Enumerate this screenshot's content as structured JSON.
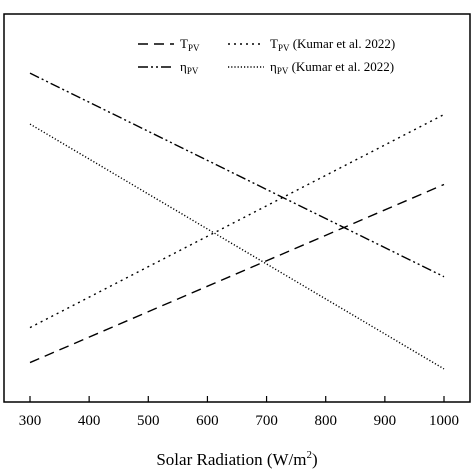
{
  "chart_data": {
    "type": "line",
    "title": "",
    "xlabel": "Solar Radiation (W/m",
    "xlabel_superscript": "2",
    "xlabel_close": ")",
    "ylabel": "",
    "xlim": [
      300,
      1000
    ],
    "ylim": [
      0,
      1
    ],
    "x_ticks": [
      300,
      400,
      500,
      600,
      700,
      800,
      900,
      1000
    ],
    "grid": false,
    "legend_position": "top",
    "series": [
      {
        "name": "T",
        "name_sub": "PV",
        "name_suffix": "",
        "dash": "dashed",
        "color": "#000000",
        "x": [
          300,
          1000
        ],
        "y": [
          0.08,
          0.64
        ]
      },
      {
        "name": "η",
        "name_sub": "PV",
        "name_suffix": "",
        "dash": "dashdotdot",
        "color": "#000000",
        "x": [
          300,
          1000
        ],
        "y": [
          0.99,
          0.35
        ]
      },
      {
        "name": "T",
        "name_sub": "PV",
        "name_suffix": " (Kumar et al. 2022)",
        "dash": "dotted",
        "color": "#000000",
        "x": [
          300,
          1000
        ],
        "y": [
          0.19,
          0.86
        ]
      },
      {
        "name": "η",
        "name_sub": "PV",
        "name_suffix": " (Kumar et al. 2022)",
        "dash": "fine-dotted",
        "color": "#000000",
        "x": [
          300,
          1000
        ],
        "y": [
          0.83,
          0.06
        ]
      }
    ]
  }
}
